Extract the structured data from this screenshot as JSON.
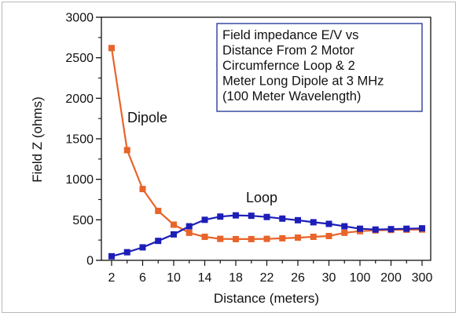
{
  "chart_data": {
    "type": "line",
    "title": "",
    "xlabel": "Distance (meters)",
    "ylabel": "Field Z (ohms)",
    "ylim": [
      0,
      3000
    ],
    "yticks": [
      0,
      500,
      1000,
      1500,
      2000,
      2500,
      3000
    ],
    "categories": [
      "2",
      "4",
      "6",
      "8",
      "10",
      "12",
      "14",
      "16",
      "18",
      "20",
      "22",
      "24",
      "26",
      "28",
      "30",
      "50",
      "100",
      "150",
      "200",
      "250",
      "300"
    ],
    "xtick_labels": [
      "2",
      "6",
      "10",
      "14",
      "18",
      "22",
      "26",
      "30",
      "100",
      "200",
      "300"
    ],
    "grid": false,
    "legend": "none",
    "annotation": [
      "Field impedance E/V vs",
      "Distance From 2 Motor",
      "Circumfernce Loop & 2",
      "Meter Long Dipole at 3 MHz",
      "(100 Meter Wavelength)"
    ],
    "series": [
      {
        "name": "Dipole",
        "color": "#e8642a",
        "marker": "square",
        "values": [
          2620,
          1360,
          880,
          610,
          440,
          340,
          290,
          265,
          262,
          262,
          265,
          272,
          280,
          290,
          300,
          340,
          360,
          370,
          375,
          378,
          380
        ]
      },
      {
        "name": "Loop",
        "color": "#1d1db8",
        "marker": "square",
        "values": [
          50,
          100,
          160,
          240,
          320,
          420,
          500,
          540,
          555,
          550,
          535,
          515,
          495,
          470,
          450,
          420,
          390,
          380,
          385,
          390,
          395
        ]
      }
    ]
  }
}
